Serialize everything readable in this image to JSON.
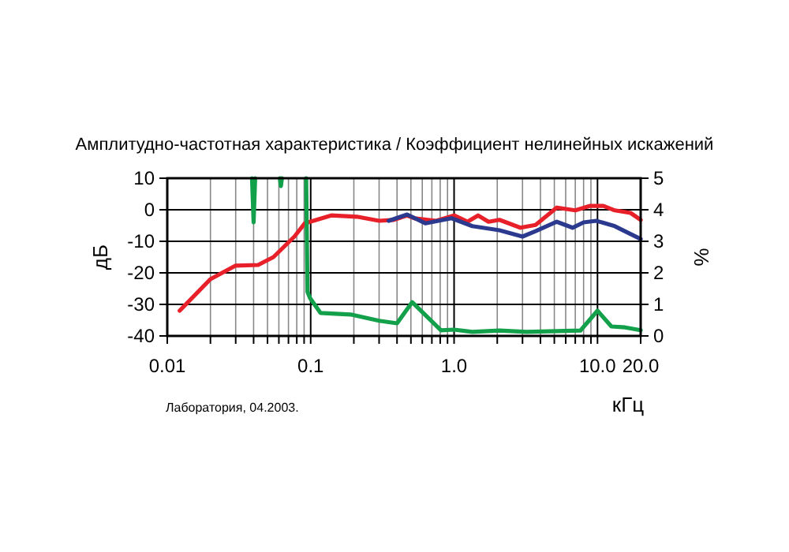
{
  "chart_data": {
    "type": "line",
    "title": "Амплитудно-частотная характеристика / Коэффициент нелинейных искажений",
    "xlabel": "кГц",
    "ylabel": "дБ",
    "y2label": "%",
    "log": "x",
    "grid": true,
    "marker": "none",
    "line_style": "solid",
    "xlim": [
      0.01,
      20
    ],
    "xticks": [
      0.01,
      {
        "value": 0.02,
        "label": null
      },
      {
        "value": 0.03,
        "label": null
      },
      {
        "value": 0.04,
        "label": null
      },
      {
        "value": 0.05,
        "label": null
      },
      {
        "value": 0.06,
        "label": null
      },
      {
        "value": 0.07,
        "label": null
      },
      {
        "value": 0.08,
        "label": null
      },
      {
        "value": 0.09,
        "label": null
      },
      0.1,
      {
        "value": 0.2,
        "label": null
      },
      {
        "value": 0.3,
        "label": null
      },
      {
        "value": 0.4,
        "label": null
      },
      {
        "value": 0.5,
        "label": null
      },
      {
        "value": 0.6,
        "label": null
      },
      {
        "value": 0.7,
        "label": null
      },
      {
        "value": 0.8,
        "label": null
      },
      {
        "value": 0.9,
        "label": null
      },
      {
        "value": 1,
        "label": "1.0"
      },
      {
        "value": 2,
        "label": null
      },
      {
        "value": 3,
        "label": null
      },
      {
        "value": 4,
        "label": null
      },
      {
        "value": 5,
        "label": null
      },
      {
        "value": 6,
        "label": null
      },
      {
        "value": 7,
        "label": null
      },
      {
        "value": 8,
        "label": null
      },
      {
        "value": 9,
        "label": null
      },
      {
        "value": 10,
        "label": "10.0"
      },
      {
        "value": 20,
        "label": "20.0"
      }
    ],
    "ylim": [
      -40,
      10
    ],
    "yticks": [
      -40,
      -30,
      -20,
      -10,
      0,
      10
    ],
    "y2lim": [
      0,
      5
    ],
    "y2ticks": [
      0,
      1,
      2,
      3,
      4,
      5
    ],
    "series": [
      {
        "color": "#e8202a",
        "x": [
          0.0122,
          0.02,
          0.03,
          0.043,
          0.055,
          0.077,
          0.091,
          0.139,
          0.21,
          0.3,
          0.38,
          0.47,
          0.53,
          0.75,
          1.0,
          1.24,
          1.47,
          1.74,
          2.07,
          2.9,
          3.7,
          5.2,
          7.0,
          8.8,
          11,
          13.2,
          17,
          20
        ],
        "values": [
          -32,
          -22,
          -17.7,
          -17.5,
          -15,
          -8.5,
          -4.3,
          -1.8,
          -2.2,
          -3.5,
          -3.2,
          -1.8,
          -2.7,
          -3.5,
          -1.8,
          -3.8,
          -1.8,
          -3.8,
          -3.2,
          -5.7,
          -4.8,
          0.7,
          -0.2,
          1.2,
          1.2,
          -0.2,
          -1,
          -3.2
        ]
      },
      {
        "color": "#2b3a8f",
        "x": [
          0.35,
          0.47,
          0.63,
          0.96,
          1.34,
          2.07,
          3.0,
          3.7,
          5.2,
          6.7,
          8.0,
          9.8,
          13.2,
          20
        ],
        "values": [
          -3.5,
          -1.5,
          -4.3,
          -2.7,
          -5.2,
          -6.5,
          -8.5,
          -6.8,
          -3.8,
          -5.7,
          -4,
          -3.5,
          -5.2,
          -9.3
        ]
      },
      {
        "color": "#12a04a",
        "axis": "y2",
        "x": [
          0.039,
          0.04,
          0.041,
          0.05,
          0.061,
          0.062,
          0.063,
          0.08,
          0.093,
          0.095,
          0.099,
          0.117,
          0.19,
          0.3,
          0.4,
          0.51,
          0.81,
          1.0,
          1.34,
          2.07,
          3.2,
          7.6,
          10,
          12.5,
          15.6,
          20
        ],
        "values": [
          5,
          3.6,
          5,
          null,
          5,
          4.75,
          5,
          null,
          5,
          1.4,
          1.2,
          0.73,
          0.68,
          0.48,
          0.4,
          1.07,
          0.18,
          0.2,
          0.13,
          0.17,
          0.13,
          0.17,
          0.8,
          0.3,
          0.27,
          0.18
        ]
      }
    ],
    "annotations": [
      "Лаборатория, 04.2003."
    ]
  }
}
